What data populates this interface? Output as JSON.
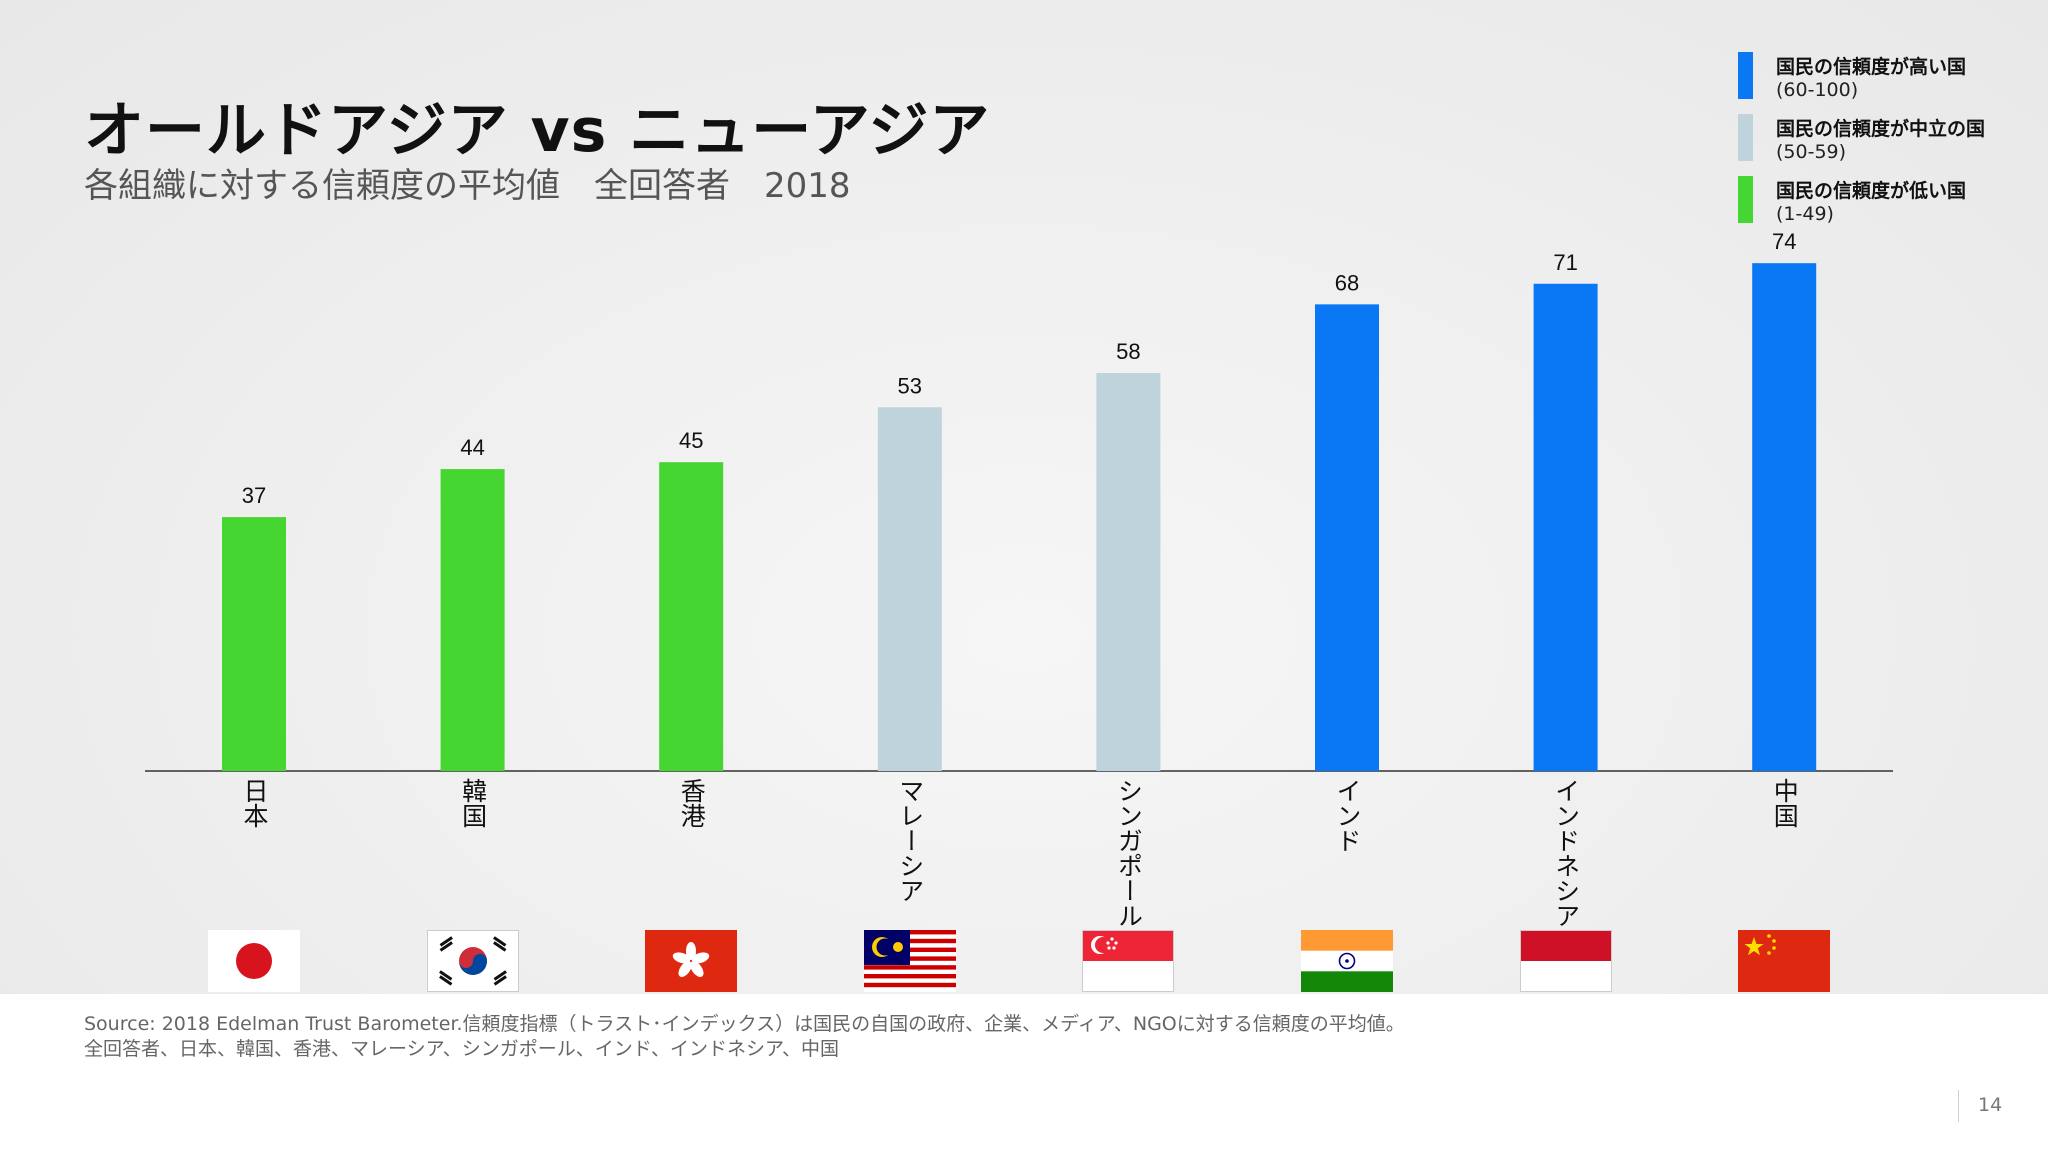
{
  "chart_data": {
    "type": "bar",
    "title": "オールドアジア vs ニューアジア",
    "subtitle": "各組織に対する信頼度の平均値　全回答者　2018",
    "categories": [
      "日本",
      "韓国",
      "香港",
      "マレーシア",
      "シンガポール",
      "インド",
      "インドネシア",
      "中国"
    ],
    "values": [
      37,
      44,
      45,
      53,
      58,
      68,
      71,
      74
    ],
    "groups": [
      "low",
      "low",
      "low",
      "neutral",
      "neutral",
      "high",
      "high",
      "high"
    ],
    "ylim": [
      0,
      80
    ],
    "grid": false,
    "legend_position": "top-right",
    "data_labels": [
      "37",
      "44",
      "45",
      "53",
      "58",
      "68",
      "71",
      "74"
    ]
  },
  "legend": [
    {
      "key": "high",
      "label": "国民の信頼度が高い国",
      "range": "(60-100)",
      "color": "#0a78f5"
    },
    {
      "key": "neutral",
      "label": "国民の信頼度が中立の国",
      "range": "(50-59)",
      "color": "#bfd3dc"
    },
    {
      "key": "low",
      "label": "国民の信頼度が低い国",
      "range": "(1-49)",
      "color": "#45d632"
    }
  ],
  "flags": [
    "japan-flag-icon",
    "south-korea-flag-icon",
    "hong-kong-flag-icon",
    "malaysia-flag-icon",
    "singapore-flag-icon",
    "india-flag-icon",
    "indonesia-flag-icon",
    "china-flag-icon"
  ],
  "footer": {
    "source_line1": "Source: 2018 Edelman Trust Barometer.信頼度指標（トラスト･インデックス）は国民の自国の政府、企業、メディア、NGOに対する信頼度の平均値。",
    "source_line2": "全回答者、日本、韓国、香港、マレーシア、シンガポール、インド、インドネシア、中国",
    "page_number": "14"
  }
}
